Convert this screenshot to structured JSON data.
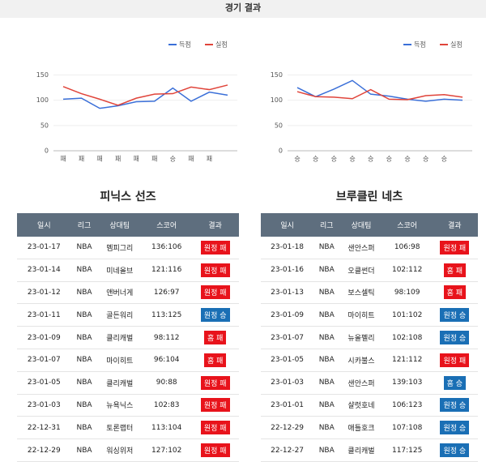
{
  "header": {
    "title": "경기 결과"
  },
  "chart_data": [
    {
      "type": "line",
      "categories": [
        "패",
        "패",
        "패",
        "패",
        "패",
        "패",
        "승",
        "패",
        "패",
        null
      ],
      "series": [
        {
          "name": "득점",
          "color": "#3a6fd8",
          "values": [
            102,
            104,
            84,
            89,
            97,
            98,
            124,
            98,
            116,
            110
          ]
        },
        {
          "name": "실점",
          "color": "#e0443a",
          "values": [
            127,
            113,
            102,
            90,
            104,
            112,
            113,
            126,
            121,
            130
          ]
        }
      ],
      "ylim": [
        0,
        170
      ],
      "yticks": [
        0,
        50,
        100,
        150
      ],
      "grid": true,
      "legend": "top-right"
    },
    {
      "type": "line",
      "categories": [
        "승",
        "승",
        "승",
        "승",
        "승",
        "승",
        "승",
        "승",
        "승",
        null
      ],
      "series": [
        {
          "name": "득점",
          "color": "#3a6fd8",
          "values": [
            125,
            107,
            122,
            139,
            112,
            108,
            102,
            98,
            102,
            100
          ]
        },
        {
          "name": "실점",
          "color": "#e0443a",
          "values": [
            117,
            107,
            106,
            103,
            121,
            102,
            101,
            109,
            111,
            106
          ]
        }
      ],
      "ylim": [
        0,
        170
      ],
      "yticks": [
        0,
        50,
        100,
        150
      ],
      "grid": true,
      "legend": "top-right"
    }
  ],
  "tables": [
    {
      "title": "피닉스 선즈",
      "columns": [
        "일시",
        "리그",
        "상대팀",
        "스코어",
        "결과"
      ],
      "rows": [
        {
          "date": "23-01-17",
          "league": "NBA",
          "opponent": "멤피그리",
          "score": "136:106",
          "result": "원정 패",
          "result_color": "#e8131b"
        },
        {
          "date": "23-01-14",
          "league": "NBA",
          "opponent": "미네올브",
          "score": "121:116",
          "result": "원정 패",
          "result_color": "#e8131b"
        },
        {
          "date": "23-01-12",
          "league": "NBA",
          "opponent": "앤버너게",
          "score": "126:97",
          "result": "원정 패",
          "result_color": "#e8131b"
        },
        {
          "date": "23-01-11",
          "league": "NBA",
          "opponent": "골든워리",
          "score": "113:125",
          "result": "원정 승",
          "result_color": "#1a6fb5"
        },
        {
          "date": "23-01-09",
          "league": "NBA",
          "opponent": "클리캐벌",
          "score": "98:112",
          "result": "홈 패",
          "result_color": "#e8131b"
        },
        {
          "date": "23-01-07",
          "league": "NBA",
          "opponent": "마이히트",
          "score": "96:104",
          "result": "홈 패",
          "result_color": "#e8131b"
        },
        {
          "date": "23-01-05",
          "league": "NBA",
          "opponent": "클리캐벌",
          "score": "90:88",
          "result": "원정 패",
          "result_color": "#e8131b"
        },
        {
          "date": "23-01-03",
          "league": "NBA",
          "opponent": "뉴욕닉스",
          "score": "102:83",
          "result": "원정 패",
          "result_color": "#e8131b"
        },
        {
          "date": "22-12-31",
          "league": "NBA",
          "opponent": "토론랩터",
          "score": "113:104",
          "result": "원정 패",
          "result_color": "#e8131b"
        },
        {
          "date": "22-12-29",
          "league": "NBA",
          "opponent": "워싱위저",
          "score": "127:102",
          "result": "원정 패",
          "result_color": "#e8131b"
        }
      ]
    },
    {
      "title": "브루클린 네츠",
      "columns": [
        "일시",
        "리그",
        "상대팀",
        "스코어",
        "결과"
      ],
      "rows": [
        {
          "date": "23-01-18",
          "league": "NBA",
          "opponent": "샌안스퍼",
          "score": "106:98",
          "result": "원정 패",
          "result_color": "#e8131b"
        },
        {
          "date": "23-01-16",
          "league": "NBA",
          "opponent": "오클썬더",
          "score": "102:112",
          "result": "홈 패",
          "result_color": "#e8131b"
        },
        {
          "date": "23-01-13",
          "league": "NBA",
          "opponent": "보스셀틱",
          "score": "98:109",
          "result": "홈 패",
          "result_color": "#e8131b"
        },
        {
          "date": "23-01-09",
          "league": "NBA",
          "opponent": "마이히트",
          "score": "101:102",
          "result": "원정 승",
          "result_color": "#1a6fb5"
        },
        {
          "date": "23-01-07",
          "league": "NBA",
          "opponent": "뉴올펠리",
          "score": "102:108",
          "result": "원정 승",
          "result_color": "#1a6fb5"
        },
        {
          "date": "23-01-05",
          "league": "NBA",
          "opponent": "시카불스",
          "score": "121:112",
          "result": "원정 패",
          "result_color": "#e8131b"
        },
        {
          "date": "23-01-03",
          "league": "NBA",
          "opponent": "샌안스퍼",
          "score": "139:103",
          "result": "홈 승",
          "result_color": "#1a6fb5"
        },
        {
          "date": "23-01-01",
          "league": "NBA",
          "opponent": "샬럿호네",
          "score": "106:123",
          "result": "원정 승",
          "result_color": "#1a6fb5"
        },
        {
          "date": "22-12-29",
          "league": "NBA",
          "opponent": "애틀호크",
          "score": "107:108",
          "result": "원정 승",
          "result_color": "#1a6fb5"
        },
        {
          "date": "22-12-27",
          "league": "NBA",
          "opponent": "클리캐벌",
          "score": "117:125",
          "result": "원정 승",
          "result_color": "#1a6fb5"
        }
      ]
    }
  ]
}
